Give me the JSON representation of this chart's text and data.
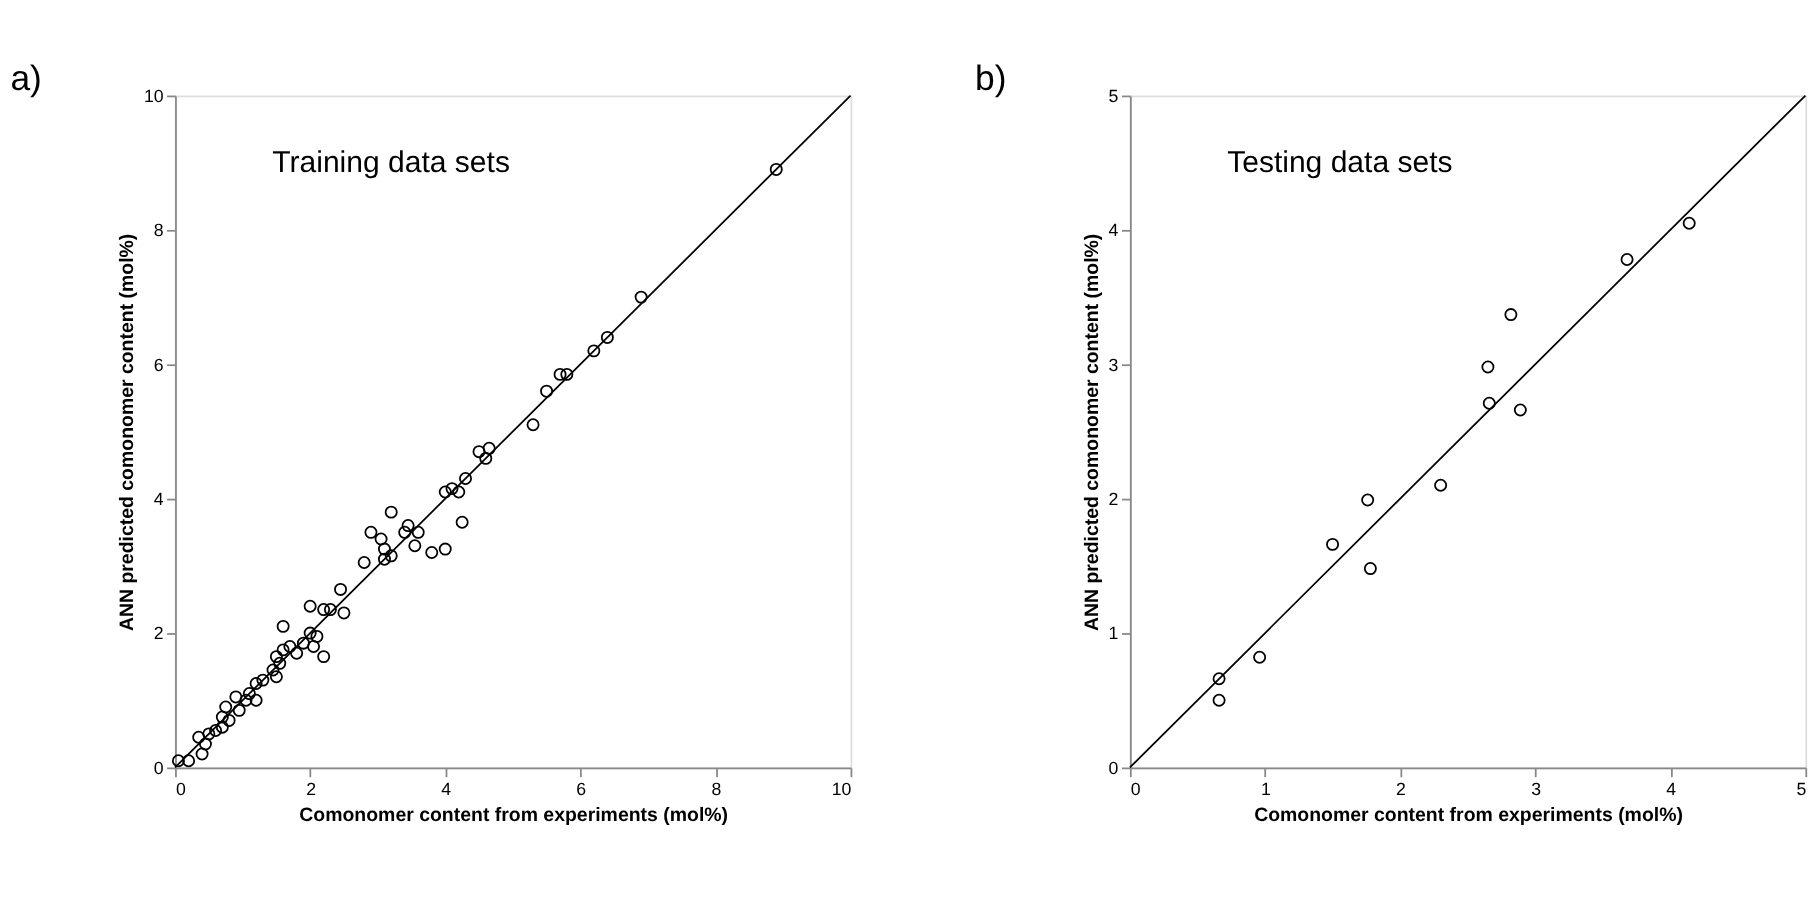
{
  "chart_data": [
    {
      "type": "scatter",
      "title": "a)",
      "xlabel": "Comonomer content from experiments (mol%)",
      "ylabel": "ANN predicted comonomer content (mol%)",
      "annotations": [
        "Training data sets"
      ],
      "marker": "circle",
      "grid": false,
      "xlim": [
        0,
        10
      ],
      "ylim": [
        0,
        10
      ],
      "xticks": [
        0,
        2,
        4,
        6,
        8,
        10
      ],
      "yticks": [
        0,
        2,
        4,
        6,
        8,
        10
      ],
      "series": [
        {
          "color": "#000000",
          "x": [
            0.05,
            0.2,
            0.35,
            0.4,
            0.45,
            0.5,
            0.6,
            0.7,
            0.7,
            0.75,
            0.8,
            0.9,
            0.95,
            1.05,
            1.1,
            1.2,
            1.2,
            1.3,
            1.45,
            1.5,
            1.5,
            1.55,
            1.6,
            1.6,
            1.7,
            1.8,
            1.9,
            2.0,
            2.0,
            2.05,
            2.1,
            2.2,
            2.2,
            2.3,
            2.45,
            2.5,
            2.8,
            2.9,
            3.05,
            3.1,
            3.1,
            3.2,
            3.2,
            3.4,
            3.45,
            3.55,
            3.6,
            3.8,
            4.0,
            4.0,
            4.1,
            4.2,
            4.25,
            4.3,
            4.5,
            4.6,
            4.65,
            5.3,
            5.5,
            5.7,
            5.8,
            6.2,
            6.4,
            6.9,
            8.9
          ],
          "values": [
            0.1,
            0.1,
            0.45,
            0.2,
            0.35,
            0.5,
            0.55,
            0.6,
            0.75,
            0.9,
            0.7,
            1.05,
            0.85,
            1.0,
            1.1,
            1.25,
            1.0,
            1.3,
            1.45,
            1.35,
            1.65,
            1.55,
            1.75,
            2.1,
            1.8,
            1.7,
            1.85,
            2.0,
            2.4,
            1.8,
            1.95,
            2.35,
            1.65,
            2.35,
            2.65,
            2.3,
            3.05,
            3.5,
            3.4,
            3.1,
            3.25,
            3.8,
            3.15,
            3.5,
            3.6,
            3.3,
            3.5,
            3.2,
            3.25,
            4.1,
            4.15,
            4.1,
            3.65,
            4.3,
            4.7,
            4.6,
            4.75,
            5.1,
            5.6,
            5.85,
            5.85,
            6.2,
            6.4,
            7.0,
            8.9
          ]
        },
        {
          "type": "line",
          "marker": "none",
          "color": "#000000",
          "x": [
            0,
            10
          ],
          "values": [
            0,
            10
          ]
        }
      ]
    },
    {
      "type": "scatter",
      "title": "b)",
      "xlabel": "Comonomer content from experiments (mol%)",
      "ylabel": "ANN predicted comonomer content (mol%)",
      "annotations": [
        "Testing data sets"
      ],
      "marker": "circle",
      "grid": false,
      "xlim": [
        0,
        5
      ],
      "ylim": [
        0,
        5
      ],
      "xticks": [
        0,
        1,
        2,
        3,
        4,
        5
      ],
      "yticks": [
        0,
        1,
        2,
        3,
        4,
        5
      ],
      "series": [
        {
          "color": "#000000",
          "x": [
            0.66,
            0.66,
            0.96,
            1.5,
            1.76,
            1.78,
            2.3,
            2.65,
            2.66,
            2.82,
            2.89,
            3.68,
            4.14
          ],
          "values": [
            0.66,
            0.5,
            0.82,
            1.66,
            1.99,
            1.48,
            2.1,
            2.98,
            2.71,
            3.37,
            2.66,
            3.78,
            4.05
          ]
        },
        {
          "type": "line",
          "marker": "none",
          "color": "#000000",
          "x": [
            0,
            5
          ],
          "values": [
            0,
            5
          ]
        }
      ]
    }
  ]
}
